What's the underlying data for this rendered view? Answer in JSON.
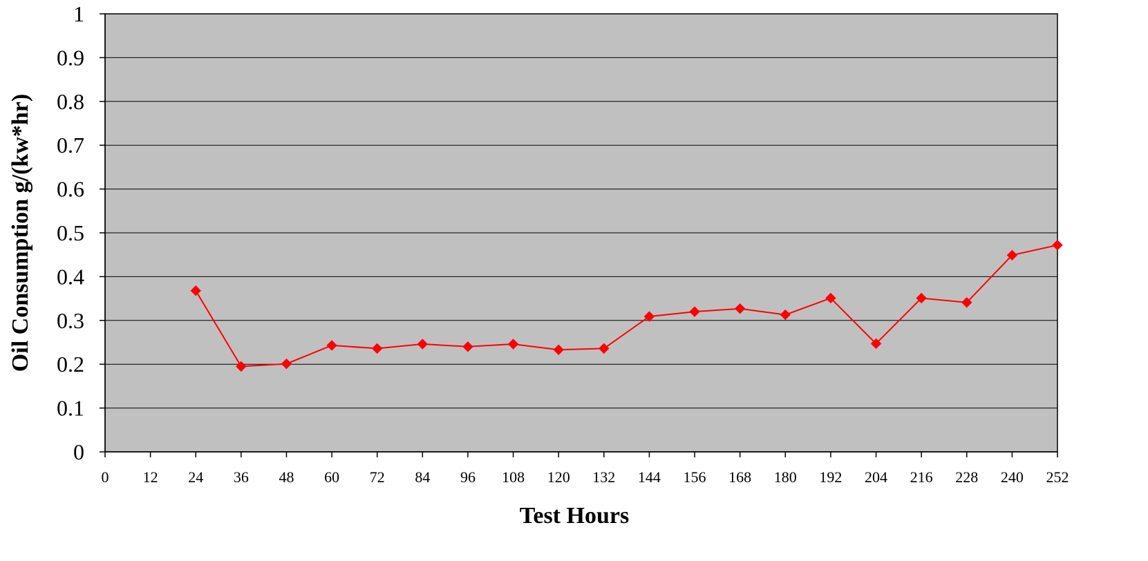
{
  "chart_data": {
    "type": "line",
    "title": "",
    "xlabel": "Test Hours",
    "ylabel": "Oil Consumption g/(kw*hr)",
    "xlim": [
      0,
      252
    ],
    "ylim": [
      0,
      1
    ],
    "x_ticks": [
      "0",
      "12",
      "24",
      "36",
      "48",
      "60",
      "72",
      "84",
      "96",
      "108",
      "120",
      "132",
      "144",
      "156",
      "168",
      "180",
      "192",
      "204",
      "216",
      "228",
      "240",
      "252"
    ],
    "y_ticks": [
      "0",
      "0.1",
      "0.2",
      "0.3",
      "0.4",
      "0.5",
      "0.6",
      "0.7",
      "0.8",
      "0.9",
      "1"
    ],
    "grid": "horizontal",
    "legend": "none",
    "series": [
      {
        "color": "#ff0000",
        "marker": "diamond",
        "x": [
          24,
          36,
          48,
          60,
          72,
          84,
          96,
          108,
          120,
          132,
          144,
          156,
          168,
          180,
          192,
          204,
          216,
          228,
          240,
          252
        ],
        "y": [
          0.368,
          0.195,
          0.201,
          0.243,
          0.236,
          0.246,
          0.24,
          0.246,
          0.233,
          0.236,
          0.309,
          0.32,
          0.327,
          0.313,
          0.351,
          0.247,
          0.351,
          0.341,
          0.449,
          0.472
        ]
      }
    ],
    "colors": {
      "plot_background": "#c0c0c0",
      "gridline": "#000000",
      "axis": "#000000"
    }
  }
}
